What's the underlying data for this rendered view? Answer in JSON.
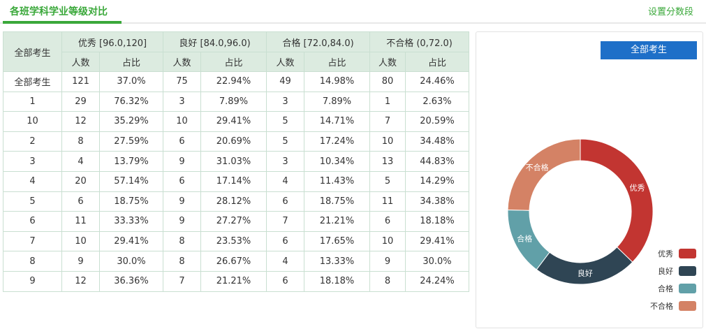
{
  "header": {
    "title": "各班学科学业等级对比",
    "settings_link": "设置分数段"
  },
  "table": {
    "first_col_header": "全部考生",
    "groups": [
      {
        "label": "优秀 [96.0,120]"
      },
      {
        "label": "良好 [84.0,96.0)"
      },
      {
        "label": "合格 [72.0,84.0)"
      },
      {
        "label": "不合格 (0,72.0)"
      }
    ],
    "sub_headers": [
      "人数",
      "占比",
      "人数",
      "占比",
      "人数",
      "占比",
      "人数",
      "占比"
    ],
    "rows": [
      [
        "全部考生",
        "121",
        "37.0%",
        "75",
        "22.94%",
        "49",
        "14.98%",
        "80",
        "24.46%"
      ],
      [
        "1",
        "29",
        "76.32%",
        "3",
        "7.89%",
        "3",
        "7.89%",
        "1",
        "2.63%"
      ],
      [
        "10",
        "12",
        "35.29%",
        "10",
        "29.41%",
        "5",
        "14.71%",
        "7",
        "20.59%"
      ],
      [
        "2",
        "8",
        "27.59%",
        "6",
        "20.69%",
        "5",
        "17.24%",
        "10",
        "34.48%"
      ],
      [
        "3",
        "4",
        "13.79%",
        "9",
        "31.03%",
        "3",
        "10.34%",
        "13",
        "44.83%"
      ],
      [
        "4",
        "20",
        "57.14%",
        "6",
        "17.14%",
        "4",
        "11.43%",
        "5",
        "14.29%"
      ],
      [
        "5",
        "6",
        "18.75%",
        "9",
        "28.12%",
        "6",
        "18.75%",
        "11",
        "34.38%"
      ],
      [
        "6",
        "11",
        "33.33%",
        "9",
        "27.27%",
        "7",
        "21.21%",
        "6",
        "18.18%"
      ],
      [
        "7",
        "10",
        "29.41%",
        "8",
        "23.53%",
        "6",
        "17.65%",
        "10",
        "29.41%"
      ],
      [
        "8",
        "9",
        "30.0%",
        "8",
        "26.67%",
        "4",
        "13.33%",
        "9",
        "30.0%"
      ],
      [
        "9",
        "12",
        "36.36%",
        "7",
        "21.21%",
        "6",
        "18.18%",
        "8",
        "24.24%"
      ]
    ]
  },
  "chart_panel": {
    "selector_label": "全部考生"
  },
  "chart_data": {
    "type": "pie",
    "donut": true,
    "labels": [
      "优秀",
      "良好",
      "合格",
      "不合格"
    ],
    "values": [
      121,
      75,
      49,
      80
    ],
    "colors": [
      "#c23531",
      "#2f4554",
      "#61a0a8",
      "#d48265"
    ],
    "legend_position": "bottom-right"
  },
  "colors": {
    "accent_green": "#3aa83a",
    "header_bg": "#dcebe0",
    "button_blue": "#1e6fc8"
  }
}
